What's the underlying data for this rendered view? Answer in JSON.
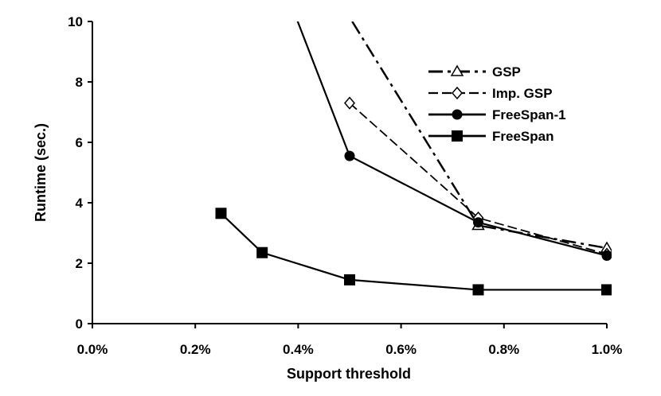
{
  "chart_data": {
    "type": "line",
    "title": "",
    "xlabel": "Support threshold",
    "ylabel": "Runtime (sec.)",
    "xlim": [
      0.0,
      1.0
    ],
    "ylim": [
      0,
      10
    ],
    "x_ticks": [
      "0.0%",
      "0.2%",
      "0.4%",
      "0.6%",
      "0.8%",
      "1.0%"
    ],
    "x_tick_values": [
      0.0,
      0.2,
      0.4,
      0.6,
      0.8,
      1.0
    ],
    "y_ticks": [
      "0",
      "2",
      "4",
      "6",
      "8",
      "10"
    ],
    "y_tick_values": [
      0,
      2,
      4,
      6,
      8,
      10
    ],
    "grid": false,
    "legend_position": "top-right",
    "series": [
      {
        "name": "GSP",
        "marker": "triangle-open",
        "line_style": "dash-dot",
        "x": [
          0.5,
          0.75,
          1.0
        ],
        "y": [
          10.0,
          3.25,
          2.5
        ]
      },
      {
        "name": "Imp. GSP",
        "marker": "diamond-open",
        "line_style": "dashed",
        "x": [
          0.5,
          0.75,
          1.0
        ],
        "y": [
          7.3,
          3.5,
          2.3
        ]
      },
      {
        "name": "FreeSpan-1",
        "marker": "circle-filled",
        "line_style": "solid",
        "x": [
          0.5,
          0.75,
          1.0
        ],
        "y": [
          5.55,
          3.35,
          2.25
        ]
      },
      {
        "name": "FreeSpan",
        "marker": "square-filled",
        "line_style": "solid",
        "x": [
          0.25,
          0.33,
          0.5,
          0.75,
          1.0
        ],
        "y": [
          3.65,
          2.35,
          1.45,
          1.12,
          1.12
        ]
      }
    ]
  }
}
